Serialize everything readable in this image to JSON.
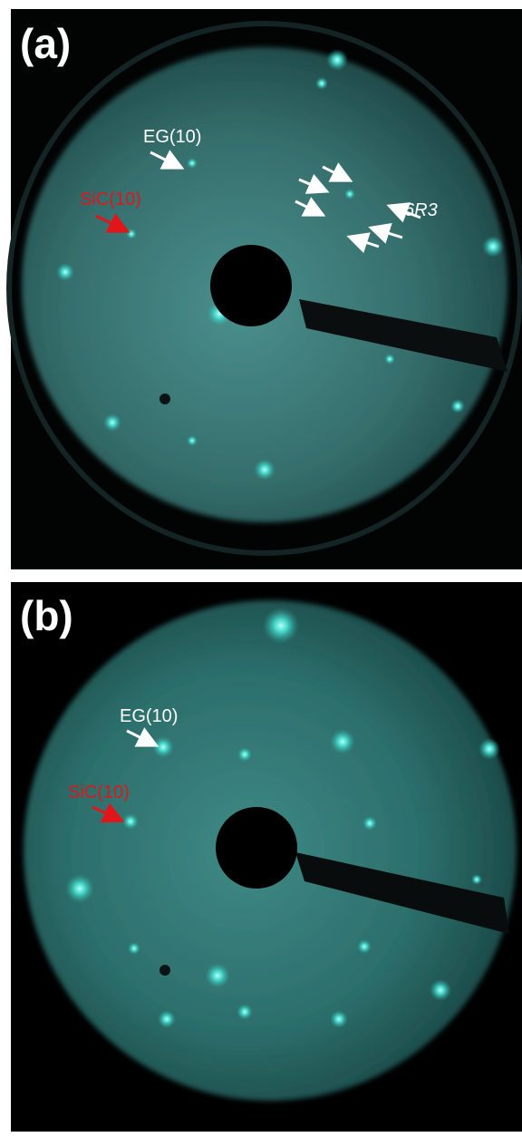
{
  "panels": [
    {
      "label": "(a)",
      "annotations": [
        "EG(10)",
        "SiC(10)",
        "6R3"
      ]
    },
    {
      "label": "(b)",
      "annotations": [
        "EG(10)",
        "SiC(10)"
      ]
    }
  ]
}
